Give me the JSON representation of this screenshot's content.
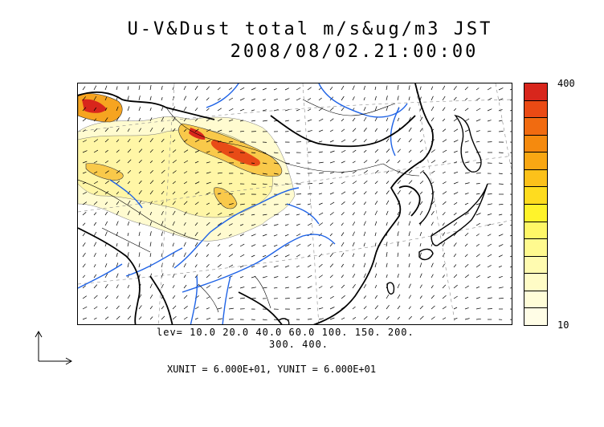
{
  "title": {
    "line1": "U-V&Dust total m/s&ug/m3 JST",
    "line2": "2008/08/02.21:00:00"
  },
  "legend": {
    "max_label": "400",
    "min_label": "10",
    "colors": [
      "#d8261c",
      "#ea4a14",
      "#f16b10",
      "#f58a0e",
      "#f9a713",
      "#fcc11a",
      "#fedc1f",
      "#fff32b",
      "#fff767",
      "#fffa8f",
      "#fffbb0",
      "#fffcc6",
      "#fffdd8",
      "#fffde6"
    ]
  },
  "contour_levels": {
    "line1": "lev= 10.0 20.0 40.0 60.0 100. 150. 200.",
    "line2": "300. 400."
  },
  "units": {
    "text": "XUNIT = 6.000E+01, YUNIT = 6.000E+01"
  },
  "map": {
    "region": "East Asia",
    "land_color": "#ffffff",
    "river_color": "#1f63e6",
    "coast_color": "#000000",
    "wind_vector_color": "#000000"
  }
}
